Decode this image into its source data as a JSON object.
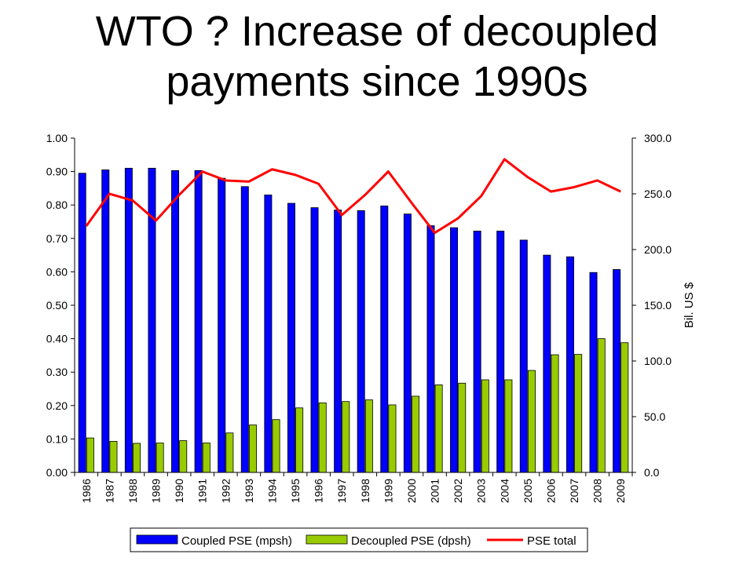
{
  "slide": {
    "title_line1": "WTO ? Increase of decoupled",
    "title_line2": "payments since 1990s"
  },
  "chart_data": {
    "type": "bar",
    "categories": [
      "1986",
      "1987",
      "1988",
      "1989",
      "1990",
      "1991",
      "1992",
      "1993",
      "1994",
      "1995",
      "1996",
      "1997",
      "1998",
      "1999",
      "2000",
      "2001",
      "2002",
      "2003",
      "2004",
      "2005",
      "2006",
      "2007",
      "2008",
      "2009"
    ],
    "series": [
      {
        "name": "Coupled PSE (mpsh)",
        "type": "bar",
        "axis": "left",
        "color": "#0000FF",
        "values": [
          0.895,
          0.905,
          0.91,
          0.91,
          0.903,
          0.903,
          0.88,
          0.855,
          0.83,
          0.805,
          0.792,
          0.785,
          0.783,
          0.797,
          0.773,
          0.738,
          0.732,
          0.722,
          0.722,
          0.695,
          0.65,
          0.645,
          0.598,
          0.607
        ]
      },
      {
        "name": "Decoupled PSE (dpsh)",
        "type": "bar",
        "axis": "left",
        "color": "#99CC00",
        "values": [
          0.103,
          0.093,
          0.087,
          0.088,
          0.095,
          0.088,
          0.118,
          0.142,
          0.158,
          0.193,
          0.208,
          0.212,
          0.217,
          0.202,
          0.228,
          0.262,
          0.267,
          0.277,
          0.277,
          0.305,
          0.352,
          0.353,
          0.4,
          0.388
        ]
      },
      {
        "name": "PSE total",
        "type": "line",
        "axis": "right",
        "color": "#FF0000",
        "values": [
          221,
          250,
          244,
          226,
          249,
          270,
          262,
          261,
          272,
          267,
          259,
          231,
          249,
          270,
          242,
          215,
          228,
          248,
          281,
          265,
          252,
          256,
          262,
          252
        ]
      }
    ],
    "y_left": {
      "min": 0,
      "max": 1,
      "step": 0.1,
      "ticks": [
        "0.00",
        "0.10",
        "0.20",
        "0.30",
        "0.40",
        "0.50",
        "0.60",
        "0.70",
        "0.80",
        "0.90",
        "1.00"
      ]
    },
    "y_right": {
      "min": 0,
      "max": 300,
      "step": 50,
      "ticks": [
        "0.0",
        "50.0",
        "100.0",
        "150.0",
        "200.0",
        "250.0",
        "300.0"
      ],
      "label": "Bil. US $"
    },
    "legend_position": "bottom",
    "grid": false
  }
}
